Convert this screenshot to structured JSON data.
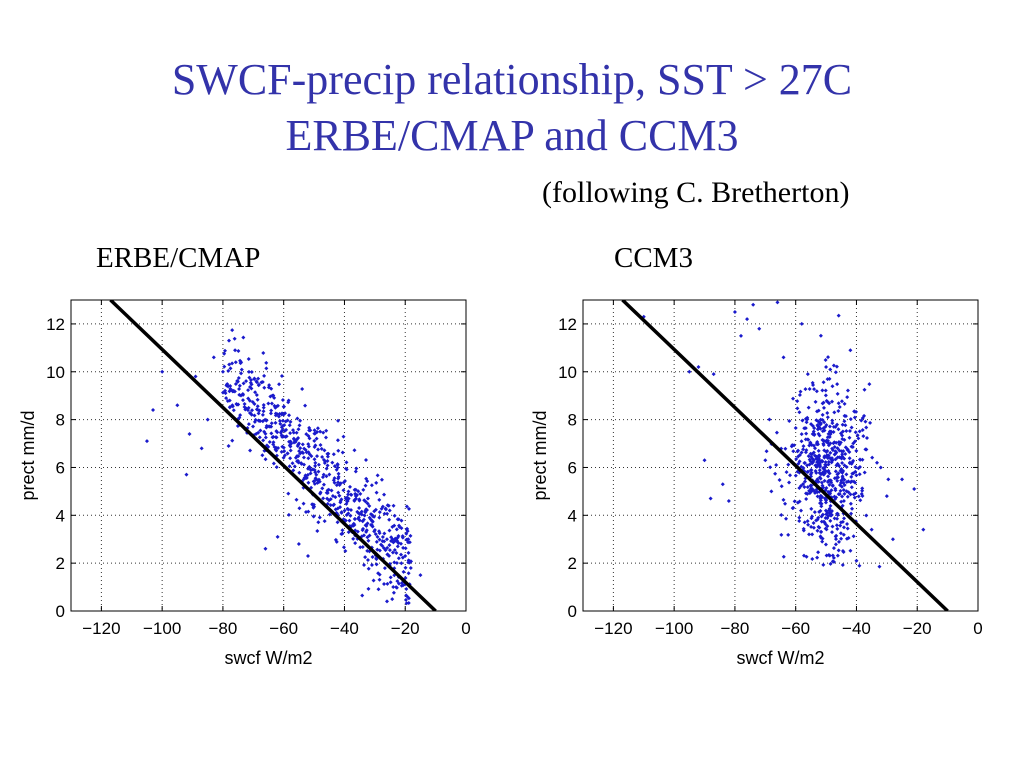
{
  "title_line1": "SWCF-precip relationship, SST > 27C",
  "title_line2": "ERBE/CMAP and CCM3",
  "subtitle": "(following C. Bretherton)",
  "colors": {
    "title": "#3333aa",
    "points": "#1a1acc",
    "line": "#000000"
  },
  "chart_data": [
    {
      "type": "scatter",
      "panel_label": "ERBE/CMAP",
      "xlabel": "swcf W/m2",
      "ylabel": "prect mm/d",
      "xlim": [
        -130,
        0
      ],
      "ylim": [
        0,
        13
      ],
      "xticks": [
        -120,
        -100,
        -80,
        -60,
        -40,
        -20,
        0
      ],
      "yticks": [
        0,
        2,
        4,
        6,
        8,
        10,
        12
      ],
      "grid": true,
      "fit_line": {
        "x": [
          -117,
          -10
        ],
        "y": [
          13,
          0
        ]
      },
      "cloud": {
        "n": 720,
        "x_range": [
          -80,
          -18
        ],
        "y_at_x_slope": -0.13,
        "y_intercept": -0.5,
        "y_spread": 1.0
      },
      "points": [
        [
          -105,
          7.1
        ],
        [
          -103,
          8.4
        ],
        [
          -100,
          10.0
        ],
        [
          -95,
          8.6
        ],
        [
          -92,
          5.7
        ],
        [
          -91,
          7.4
        ],
        [
          -89,
          9.8
        ],
        [
          -87,
          6.8
        ],
        [
          -85,
          8.0
        ],
        [
          -83,
          10.6
        ],
        [
          -80,
          10.0
        ],
        [
          -78,
          11.3
        ],
        [
          -76,
          10.9
        ],
        [
          -74,
          10.4
        ],
        [
          -66,
          2.6
        ],
        [
          -62,
          3.1
        ],
        [
          -55,
          2.8
        ],
        [
          -52,
          2.3
        ],
        [
          -48,
          7.5
        ],
        [
          -44,
          6.2
        ],
        [
          -26,
          0.4
        ],
        [
          -23,
          1.0
        ],
        [
          -20,
          2.3
        ],
        [
          -15,
          1.5
        ],
        [
          -19,
          3.0
        ]
      ]
    },
    {
      "type": "scatter",
      "panel_label": "CCM3",
      "xlabel": "swcf W/m2",
      "ylabel": "prect mm/d",
      "xlim": [
        -130,
        0
      ],
      "ylim": [
        0,
        13
      ],
      "xticks": [
        -120,
        -100,
        -80,
        -60,
        -40,
        -20,
        0
      ],
      "yticks": [
        0,
        2,
        4,
        6,
        8,
        10,
        12
      ],
      "grid": true,
      "fit_line": {
        "x": [
          -117,
          -10
        ],
        "y": [
          13,
          0
        ]
      },
      "cloud": {
        "n": 620,
        "x_center": -50,
        "x_spread": 6.5,
        "y_center": 6.0,
        "y_spread": 1.8
      },
      "points": [
        [
          -110,
          12.3
        ],
        [
          -95,
          10.0
        ],
        [
          -92,
          10.2
        ],
        [
          -90,
          6.3
        ],
        [
          -88,
          4.7
        ],
        [
          -87,
          9.9
        ],
        [
          -84,
          5.3
        ],
        [
          -82,
          4.6
        ],
        [
          -80,
          12.5
        ],
        [
          -78,
          11.5
        ],
        [
          -76,
          12.2
        ],
        [
          -74,
          12.8
        ],
        [
          -72,
          11.8
        ],
        [
          -70,
          6.3
        ],
        [
          -68,
          5.0
        ],
        [
          -66,
          12.9
        ],
        [
          -64,
          10.6
        ],
        [
          -61,
          4.3
        ],
        [
          -58,
          12.0
        ],
        [
          -56,
          9.9
        ],
        [
          -50,
          10.2
        ],
        [
          -42,
          10.9
        ],
        [
          -32,
          6.0
        ],
        [
          -30,
          4.8
        ],
        [
          -25,
          5.5
        ],
        [
          -21,
          5.1
        ],
        [
          -18,
          3.4
        ],
        [
          -28,
          3.0
        ],
        [
          -35,
          3.4
        ],
        [
          -40,
          2.1
        ]
      ]
    }
  ]
}
